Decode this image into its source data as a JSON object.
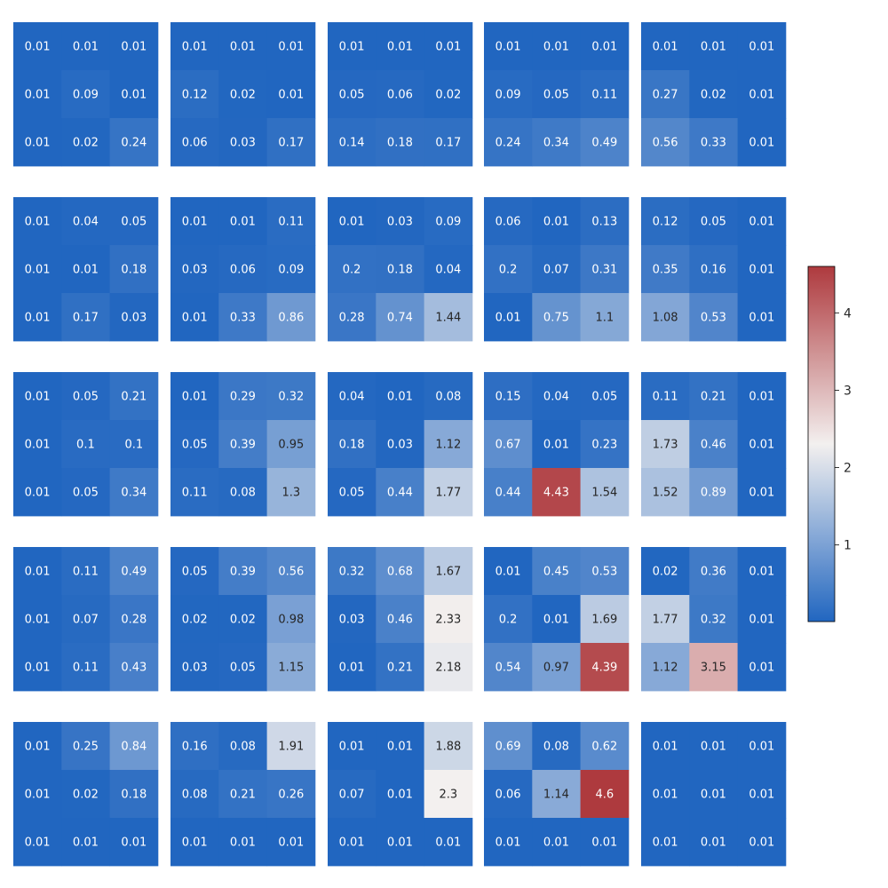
{
  "chart_data": {
    "type": "heatmap",
    "layout": {
      "rows": 5,
      "cols": 5
    },
    "cell_grid": {
      "rows": 3,
      "cols": 3
    },
    "colormap": {
      "name": "vlag",
      "low": "#2166c0",
      "mid": "#f3f0ef",
      "high": "#ae3a3e",
      "vmin": 0.01,
      "vmid": 2.3,
      "vmax": 4.6
    },
    "colorbar": {
      "placement": "right",
      "ticks": [
        1,
        2,
        3,
        4
      ],
      "tick_labels": [
        "1",
        "2",
        "3",
        "4"
      ]
    },
    "panels": [
      {
        "values": [
          [
            0.01,
            0.01,
            0.01
          ],
          [
            0.01,
            0.09,
            0.01
          ],
          [
            0.01,
            0.02,
            0.24
          ]
        ],
        "labels": [
          [
            "0.01",
            "0.01",
            "0.01"
          ],
          [
            "0.01",
            "0.09",
            "0.01"
          ],
          [
            "0.01",
            "0.02",
            "0.24"
          ]
        ]
      },
      {
        "values": [
          [
            0.01,
            0.01,
            0.01
          ],
          [
            0.12,
            0.02,
            0.01
          ],
          [
            0.06,
            0.03,
            0.17
          ]
        ],
        "labels": [
          [
            "0.01",
            "0.01",
            "0.01"
          ],
          [
            "0.12",
            "0.02",
            "0.01"
          ],
          [
            "0.06",
            "0.03",
            "0.17"
          ]
        ]
      },
      {
        "values": [
          [
            0.01,
            0.01,
            0.01
          ],
          [
            0.05,
            0.06,
            0.02
          ],
          [
            0.14,
            0.18,
            0.17
          ]
        ],
        "labels": [
          [
            "0.01",
            "0.01",
            "0.01"
          ],
          [
            "0.05",
            "0.06",
            "0.02"
          ],
          [
            "0.14",
            "0.18",
            "0.17"
          ]
        ]
      },
      {
        "values": [
          [
            0.01,
            0.01,
            0.01
          ],
          [
            0.09,
            0.05,
            0.11
          ],
          [
            0.24,
            0.34,
            0.49
          ]
        ],
        "labels": [
          [
            "0.01",
            "0.01",
            "0.01"
          ],
          [
            "0.09",
            "0.05",
            "0.11"
          ],
          [
            "0.24",
            "0.34",
            "0.49"
          ]
        ]
      },
      {
        "values": [
          [
            0.01,
            0.01,
            0.01
          ],
          [
            0.27,
            0.02,
            0.01
          ],
          [
            0.56,
            0.33,
            0.01
          ]
        ],
        "labels": [
          [
            "0.01",
            "0.01",
            "0.01"
          ],
          [
            "0.27",
            "0.02",
            "0.01"
          ],
          [
            "0.56",
            "0.33",
            "0.01"
          ]
        ]
      },
      {
        "values": [
          [
            0.01,
            0.04,
            0.05
          ],
          [
            0.01,
            0.01,
            0.18
          ],
          [
            0.01,
            0.17,
            0.03
          ]
        ],
        "labels": [
          [
            "0.01",
            "0.04",
            "0.05"
          ],
          [
            "0.01",
            "0.01",
            "0.18"
          ],
          [
            "0.01",
            "0.17",
            "0.03"
          ]
        ]
      },
      {
        "values": [
          [
            0.01,
            0.01,
            0.11
          ],
          [
            0.03,
            0.06,
            0.09
          ],
          [
            0.01,
            0.33,
            0.86
          ]
        ],
        "labels": [
          [
            "0.01",
            "0.01",
            "0.11"
          ],
          [
            "0.03",
            "0.06",
            "0.09"
          ],
          [
            "0.01",
            "0.33",
            "0.86"
          ]
        ]
      },
      {
        "values": [
          [
            0.01,
            0.03,
            0.09
          ],
          [
            0.2,
            0.18,
            0.04
          ],
          [
            0.28,
            0.74,
            1.44
          ]
        ],
        "labels": [
          [
            "0.01",
            "0.03",
            "0.09"
          ],
          [
            "0.2",
            "0.18",
            "0.04"
          ],
          [
            "0.28",
            "0.74",
            "1.44"
          ]
        ]
      },
      {
        "values": [
          [
            0.06,
            0.01,
            0.13
          ],
          [
            0.2,
            0.07,
            0.31
          ],
          [
            0.01,
            0.75,
            1.1
          ]
        ],
        "labels": [
          [
            "0.06",
            "0.01",
            "0.13"
          ],
          [
            "0.2",
            "0.07",
            "0.31"
          ],
          [
            "0.01",
            "0.75",
            "1.1"
          ]
        ]
      },
      {
        "values": [
          [
            0.12,
            0.05,
            0.01
          ],
          [
            0.35,
            0.16,
            0.01
          ],
          [
            1.08,
            0.53,
            0.01
          ]
        ],
        "labels": [
          [
            "0.12",
            "0.05",
            "0.01"
          ],
          [
            "0.35",
            "0.16",
            "0.01"
          ],
          [
            "1.08",
            "0.53",
            "0.01"
          ]
        ]
      },
      {
        "values": [
          [
            0.01,
            0.05,
            0.21
          ],
          [
            0.01,
            0.1,
            0.1
          ],
          [
            0.01,
            0.05,
            0.34
          ]
        ],
        "labels": [
          [
            "0.01",
            "0.05",
            "0.21"
          ],
          [
            "0.01",
            "0.1",
            "0.1"
          ],
          [
            "0.01",
            "0.05",
            "0.34"
          ]
        ]
      },
      {
        "values": [
          [
            0.01,
            0.29,
            0.32
          ],
          [
            0.05,
            0.39,
            0.95
          ],
          [
            0.11,
            0.08,
            1.3
          ]
        ],
        "labels": [
          [
            "0.01",
            "0.29",
            "0.32"
          ],
          [
            "0.05",
            "0.39",
            "0.95"
          ],
          [
            "0.11",
            "0.08",
            "1.3"
          ]
        ]
      },
      {
        "values": [
          [
            0.04,
            0.01,
            0.08
          ],
          [
            0.18,
            0.03,
            1.12
          ],
          [
            0.05,
            0.44,
            1.77
          ]
        ],
        "labels": [
          [
            "0.04",
            "0.01",
            "0.08"
          ],
          [
            "0.18",
            "0.03",
            "1.12"
          ],
          [
            "0.05",
            "0.44",
            "1.77"
          ]
        ]
      },
      {
        "values": [
          [
            0.15,
            0.04,
            0.05
          ],
          [
            0.67,
            0.01,
            0.23
          ],
          [
            0.44,
            4.43,
            1.54
          ]
        ],
        "labels": [
          [
            "0.15",
            "0.04",
            "0.05"
          ],
          [
            "0.67",
            "0.01",
            "0.23"
          ],
          [
            "0.44",
            "4.43",
            "1.54"
          ]
        ]
      },
      {
        "values": [
          [
            0.11,
            0.21,
            0.01
          ],
          [
            1.73,
            0.46,
            0.01
          ],
          [
            1.52,
            0.89,
            0.01
          ]
        ],
        "labels": [
          [
            "0.11",
            "0.21",
            "0.01"
          ],
          [
            "1.73",
            "0.46",
            "0.01"
          ],
          [
            "1.52",
            "0.89",
            "0.01"
          ]
        ]
      },
      {
        "values": [
          [
            0.01,
            0.11,
            0.49
          ],
          [
            0.01,
            0.07,
            0.28
          ],
          [
            0.01,
            0.11,
            0.43
          ]
        ],
        "labels": [
          [
            "0.01",
            "0.11",
            "0.49"
          ],
          [
            "0.01",
            "0.07",
            "0.28"
          ],
          [
            "0.01",
            "0.11",
            "0.43"
          ]
        ]
      },
      {
        "values": [
          [
            0.05,
            0.39,
            0.56
          ],
          [
            0.02,
            0.02,
            0.98
          ],
          [
            0.03,
            0.05,
            1.15
          ]
        ],
        "labels": [
          [
            "0.05",
            "0.39",
            "0.56"
          ],
          [
            "0.02",
            "0.02",
            "0.98"
          ],
          [
            "0.03",
            "0.05",
            "1.15"
          ]
        ]
      },
      {
        "values": [
          [
            0.32,
            0.68,
            1.67
          ],
          [
            0.03,
            0.46,
            2.33
          ],
          [
            0.01,
            0.21,
            2.18
          ]
        ],
        "labels": [
          [
            "0.32",
            "0.68",
            "1.67"
          ],
          [
            "0.03",
            "0.46",
            "2.33"
          ],
          [
            "0.01",
            "0.21",
            "2.18"
          ]
        ]
      },
      {
        "values": [
          [
            0.01,
            0.45,
            0.53
          ],
          [
            0.2,
            0.01,
            1.69
          ],
          [
            0.54,
            0.97,
            4.39
          ]
        ],
        "labels": [
          [
            "0.01",
            "0.45",
            "0.53"
          ],
          [
            "0.2",
            "0.01",
            "1.69"
          ],
          [
            "0.54",
            "0.97",
            "4.39"
          ]
        ]
      },
      {
        "values": [
          [
            0.02,
            0.36,
            0.01
          ],
          [
            1.77,
            0.32,
            0.01
          ],
          [
            1.12,
            3.15,
            0.01
          ]
        ],
        "labels": [
          [
            "0.02",
            "0.36",
            "0.01"
          ],
          [
            "1.77",
            "0.32",
            "0.01"
          ],
          [
            "1.12",
            "3.15",
            "0.01"
          ]
        ]
      },
      {
        "values": [
          [
            0.01,
            0.25,
            0.84
          ],
          [
            0.01,
            0.02,
            0.18
          ],
          [
            0.01,
            0.01,
            0.01
          ]
        ],
        "labels": [
          [
            "0.01",
            "0.25",
            "0.84"
          ],
          [
            "0.01",
            "0.02",
            "0.18"
          ],
          [
            "0.01",
            "0.01",
            "0.01"
          ]
        ]
      },
      {
        "values": [
          [
            0.16,
            0.08,
            1.91
          ],
          [
            0.08,
            0.21,
            0.26
          ],
          [
            0.01,
            0.01,
            0.01
          ]
        ],
        "labels": [
          [
            "0.16",
            "0.08",
            "1.91"
          ],
          [
            "0.08",
            "0.21",
            "0.26"
          ],
          [
            "0.01",
            "0.01",
            "0.01"
          ]
        ]
      },
      {
        "values": [
          [
            0.01,
            0.01,
            1.88
          ],
          [
            0.07,
            0.01,
            2.3
          ],
          [
            0.01,
            0.01,
            0.01
          ]
        ],
        "labels": [
          [
            "0.01",
            "0.01",
            "1.88"
          ],
          [
            "0.07",
            "0.01",
            "2.3"
          ],
          [
            "0.01",
            "0.01",
            "0.01"
          ]
        ]
      },
      {
        "values": [
          [
            0.69,
            0.08,
            0.62
          ],
          [
            0.06,
            1.14,
            4.6
          ],
          [
            0.01,
            0.01,
            0.01
          ]
        ],
        "labels": [
          [
            "0.69",
            "0.08",
            "0.62"
          ],
          [
            "0.06",
            "1.14",
            "4.6"
          ],
          [
            "0.01",
            "0.01",
            "0.01"
          ]
        ]
      },
      {
        "values": [
          [
            0.01,
            0.01,
            0.01
          ],
          [
            0.01,
            0.01,
            0.01
          ],
          [
            0.01,
            0.01,
            0.01
          ]
        ],
        "labels": [
          [
            "0.01",
            "0.01",
            "0.01"
          ],
          [
            "0.01",
            "0.01",
            "0.01"
          ],
          [
            "0.01",
            "0.01",
            "0.01"
          ]
        ]
      }
    ]
  }
}
